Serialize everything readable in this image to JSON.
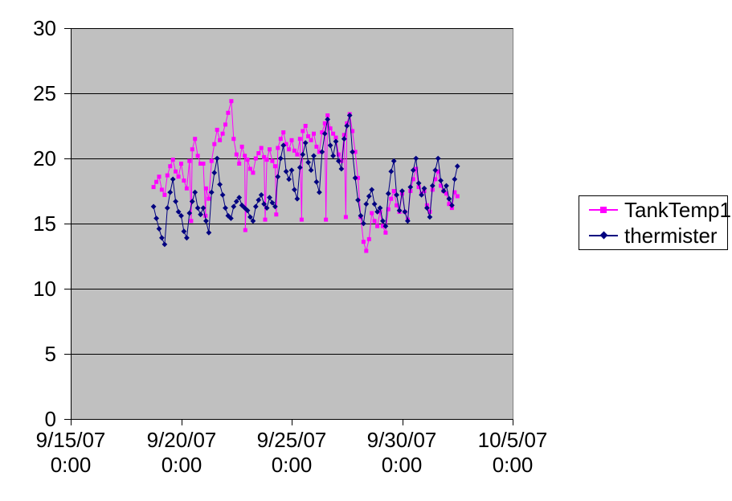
{
  "chart_data": {
    "type": "line",
    "title": "",
    "xlabel": "",
    "ylabel": "",
    "x_unit_note": "t = days after 9/15/07 0:00",
    "x_range": [
      0,
      20
    ],
    "y_range": [
      0,
      30
    ],
    "grid": "horizontal",
    "grid_color": "#000000",
    "plot_bg": "#C0C0C0",
    "plot_border": "#808080",
    "background": "#FFFFFF",
    "legend_position": "right",
    "y_ticks": [
      "30",
      "25",
      "20",
      "15",
      "10",
      "5",
      "0"
    ],
    "x_ticks": [
      {
        "t": 0,
        "date": "9/15/07",
        "time": "0:00"
      },
      {
        "t": 5,
        "date": "9/20/07",
        "time": "0:00"
      },
      {
        "t": 10,
        "date": "9/25/07",
        "time": "0:00"
      },
      {
        "t": 15,
        "date": "9/30/07",
        "time": "0:00"
      },
      {
        "t": 20,
        "date": "10/5/07",
        "time": "0:00"
      }
    ],
    "series": [
      {
        "name": "TankTemp1",
        "color": "#FF00FF",
        "marker": "square",
        "points": [
          [
            3.75,
            17.8
          ],
          [
            3.875,
            18.2
          ],
          [
            4,
            18.6
          ],
          [
            4.125,
            17.6
          ],
          [
            4.25,
            17.2
          ],
          [
            4.375,
            18.7
          ],
          [
            4.5,
            19.4
          ],
          [
            4.625,
            19.9
          ],
          [
            4.75,
            19.0
          ],
          [
            4.875,
            18.6
          ],
          [
            5,
            19.6
          ],
          [
            5.125,
            18.3
          ],
          [
            5.25,
            17.7
          ],
          [
            5.375,
            19.8
          ],
          [
            5.45,
            15.2
          ],
          [
            5.5,
            20.7
          ],
          [
            5.625,
            21.5
          ],
          [
            5.75,
            20.2
          ],
          [
            5.875,
            19.6
          ],
          [
            6,
            19.6
          ],
          [
            6.1,
            15.6
          ],
          [
            6.125,
            17.7
          ],
          [
            6.25,
            16.9
          ],
          [
            6.375,
            19.8
          ],
          [
            6.5,
            21.1
          ],
          [
            6.625,
            22.2
          ],
          [
            6.75,
            21.4
          ],
          [
            6.875,
            21.9
          ],
          [
            7,
            22.6
          ],
          [
            7.125,
            23.5
          ],
          [
            7.27,
            24.4
          ],
          [
            7.375,
            21.5
          ],
          [
            7.5,
            20.3
          ],
          [
            7.625,
            19.6
          ],
          [
            7.75,
            20.9
          ],
          [
            7.875,
            20.2
          ],
          [
            7.9,
            14.5
          ],
          [
            8,
            19.9
          ],
          [
            8.125,
            19.2
          ],
          [
            8.25,
            18.9
          ],
          [
            8.375,
            20.0
          ],
          [
            8.5,
            20.4
          ],
          [
            8.625,
            20.8
          ],
          [
            8.75,
            20.1
          ],
          [
            8.8,
            15.3
          ],
          [
            8.875,
            19.9
          ],
          [
            9,
            20.7
          ],
          [
            9.125,
            19.8
          ],
          [
            9.25,
            19.4
          ],
          [
            9.3,
            15.7
          ],
          [
            9.375,
            20.8
          ],
          [
            9.5,
            21.5
          ],
          [
            9.625,
            22.0
          ],
          [
            9.75,
            21.1
          ],
          [
            9.875,
            20.7
          ],
          [
            10,
            21.4
          ],
          [
            10.125,
            20.6
          ],
          [
            10.25,
            20.3
          ],
          [
            10.375,
            21.5
          ],
          [
            10.45,
            15.3
          ],
          [
            10.5,
            22.1
          ],
          [
            10.625,
            22.5
          ],
          [
            10.75,
            21.7
          ],
          [
            10.875,
            21.4
          ],
          [
            11,
            21.9
          ],
          [
            11.125,
            20.9
          ],
          [
            11.25,
            20.5
          ],
          [
            11.375,
            22.0
          ],
          [
            11.5,
            22.7
          ],
          [
            11.55,
            15.3
          ],
          [
            11.625,
            23.3
          ],
          [
            11.75,
            22.3
          ],
          [
            11.875,
            21.9
          ],
          [
            12,
            21.6
          ],
          [
            12.125,
            20.3
          ],
          [
            12.25,
            19.8
          ],
          [
            12.375,
            21.8
          ],
          [
            12.45,
            15.5
          ],
          [
            12.5,
            22.7
          ],
          [
            12.625,
            23.4
          ],
          [
            12.75,
            22.1
          ],
          [
            12.875,
            20.5
          ],
          [
            13,
            18.5
          ],
          [
            13.125,
            15.5
          ],
          [
            13.25,
            13.6
          ],
          [
            13.375,
            12.9
          ],
          [
            13.5,
            13.8
          ],
          [
            13.625,
            15.8
          ],
          [
            13.75,
            15.2
          ],
          [
            13.875,
            14.8
          ],
          [
            14,
            15.9
          ],
          [
            14.125,
            14.8
          ],
          [
            14.25,
            14.3
          ],
          [
            14.375,
            16.1
          ],
          [
            14.5,
            16.9
          ],
          [
            14.625,
            17.5
          ],
          [
            14.75,
            16.4
          ],
          [
            14.875,
            15.9
          ],
          [
            15,
            17.3
          ],
          [
            15.125,
            15.9
          ],
          [
            15.25,
            15.3
          ],
          [
            15.375,
            17.5
          ],
          [
            15.5,
            18.4
          ],
          [
            15.625,
            19.2
          ],
          [
            15.75,
            17.8
          ],
          [
            15.875,
            17.3
          ],
          [
            16,
            17.5
          ],
          [
            16.125,
            16.4
          ],
          [
            16.25,
            15.9
          ],
          [
            16.375,
            17.6
          ],
          [
            16.5,
            18.4
          ],
          [
            16.625,
            19.0
          ],
          [
            16.75,
            17.9
          ],
          [
            16.875,
            17.5
          ],
          [
            17,
            17.3
          ],
          [
            17.125,
            16.5
          ],
          [
            17.25,
            16.2
          ],
          [
            17.375,
            17.4
          ],
          [
            17.5,
            17.1
          ]
        ]
      },
      {
        "name": "thermister",
        "color": "#000080",
        "marker": "diamond",
        "points": [
          [
            3.75,
            16.3
          ],
          [
            3.875,
            15.4
          ],
          [
            4,
            14.6
          ],
          [
            4.125,
            13.9
          ],
          [
            4.25,
            13.4
          ],
          [
            4.375,
            16.2
          ],
          [
            4.5,
            17.4
          ],
          [
            4.625,
            18.4
          ],
          [
            4.75,
            16.7
          ],
          [
            4.875,
            15.9
          ],
          [
            5,
            15.6
          ],
          [
            5.125,
            14.4
          ],
          [
            5.25,
            13.9
          ],
          [
            5.375,
            15.8
          ],
          [
            5.5,
            16.7
          ],
          [
            5.625,
            17.4
          ],
          [
            5.75,
            16.2
          ],
          [
            5.875,
            15.7
          ],
          [
            6,
            16.2
          ],
          [
            6.125,
            15.2
          ],
          [
            6.25,
            14.3
          ],
          [
            6.375,
            17.4
          ],
          [
            6.5,
            18.9
          ],
          [
            6.625,
            20.0
          ],
          [
            6.75,
            18.0
          ],
          [
            6.875,
            17.2
          ],
          [
            7,
            16.2
          ],
          [
            7.125,
            15.6
          ],
          [
            7.25,
            15.4
          ],
          [
            7.375,
            16.3
          ],
          [
            7.5,
            16.7
          ],
          [
            7.625,
            17.0
          ],
          [
            7.75,
            16.4
          ],
          [
            7.875,
            16.2
          ],
          [
            8,
            16.0
          ],
          [
            8.125,
            15.5
          ],
          [
            8.25,
            15.2
          ],
          [
            8.375,
            16.3
          ],
          [
            8.5,
            16.8
          ],
          [
            8.625,
            17.2
          ],
          [
            8.75,
            16.5
          ],
          [
            8.875,
            16.2
          ],
          [
            9,
            17.0
          ],
          [
            9.125,
            16.6
          ],
          [
            9.25,
            16.3
          ],
          [
            9.375,
            18.6
          ],
          [
            9.5,
            20.0
          ],
          [
            9.625,
            21.0
          ],
          [
            9.75,
            19.0
          ],
          [
            9.875,
            18.4
          ],
          [
            10,
            19.1
          ],
          [
            10.125,
            17.6
          ],
          [
            10.25,
            16.9
          ],
          [
            10.375,
            19.3
          ],
          [
            10.5,
            20.3
          ],
          [
            10.625,
            21.2
          ],
          [
            10.75,
            19.7
          ],
          [
            10.875,
            19.1
          ],
          [
            11,
            20.2
          ],
          [
            11.125,
            18.2
          ],
          [
            11.25,
            17.4
          ],
          [
            11.375,
            20.5
          ],
          [
            11.5,
            21.9
          ],
          [
            11.625,
            23.0
          ],
          [
            11.75,
            21.0
          ],
          [
            11.875,
            20.2
          ],
          [
            12,
            21.3
          ],
          [
            12.125,
            19.8
          ],
          [
            12.25,
            19.2
          ],
          [
            12.375,
            21.5
          ],
          [
            12.5,
            22.5
          ],
          [
            12.625,
            23.3
          ],
          [
            12.75,
            20.5
          ],
          [
            12.875,
            18.5
          ],
          [
            13,
            16.8
          ],
          [
            13.125,
            15.6
          ],
          [
            13.25,
            15.0
          ],
          [
            13.375,
            16.5
          ],
          [
            13.5,
            17.1
          ],
          [
            13.625,
            17.6
          ],
          [
            13.75,
            16.5
          ],
          [
            13.875,
            15.9
          ],
          [
            14,
            16.2
          ],
          [
            14.125,
            15.2
          ],
          [
            14.25,
            14.8
          ],
          [
            14.375,
            17.3
          ],
          [
            14.5,
            19.0
          ],
          [
            14.625,
            19.8
          ],
          [
            14.75,
            17.2
          ],
          [
            14.875,
            16.0
          ],
          [
            15,
            17.5
          ],
          [
            15.125,
            15.9
          ],
          [
            15.25,
            15.2
          ],
          [
            15.375,
            17.8
          ],
          [
            15.5,
            19.1
          ],
          [
            15.625,
            20.0
          ],
          [
            15.75,
            18.1
          ],
          [
            15.875,
            17.2
          ],
          [
            16,
            17.7
          ],
          [
            16.125,
            16.2
          ],
          [
            16.25,
            15.5
          ],
          [
            16.375,
            17.9
          ],
          [
            16.5,
            19.1
          ],
          [
            16.625,
            20.0
          ],
          [
            16.75,
            18.3
          ],
          [
            16.875,
            17.5
          ],
          [
            17,
            17.9
          ],
          [
            17.125,
            16.9
          ],
          [
            17.25,
            16.4
          ],
          [
            17.375,
            18.4
          ],
          [
            17.5,
            19.4
          ]
        ]
      }
    ]
  }
}
